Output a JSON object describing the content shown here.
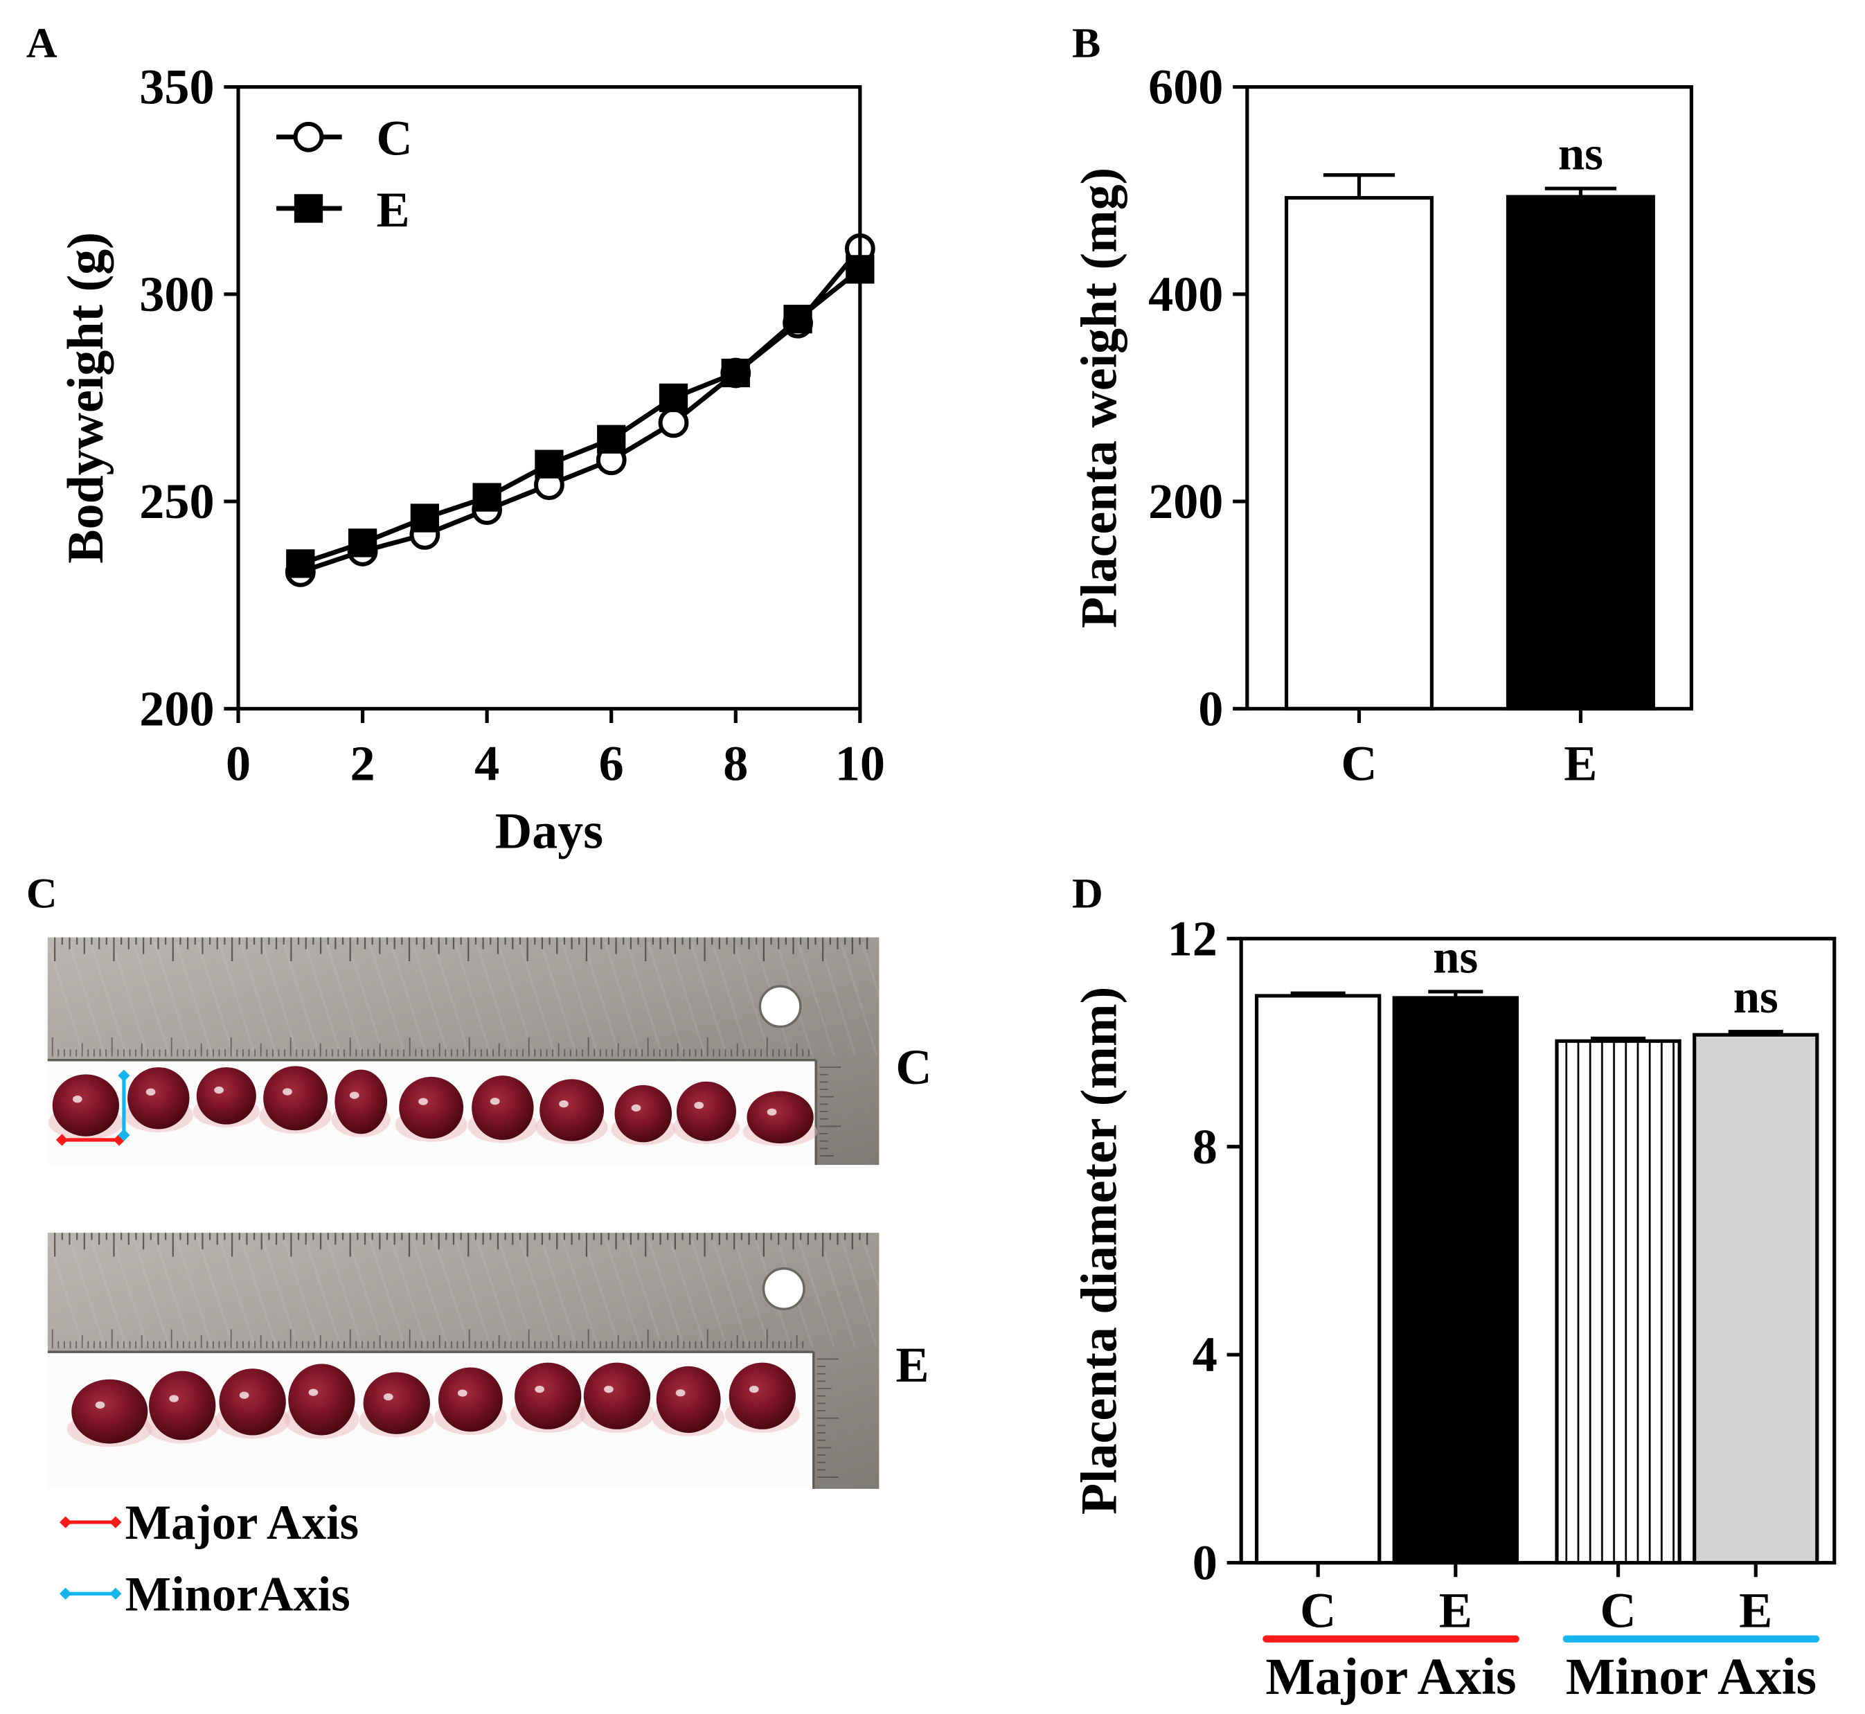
{
  "chart_data": [
    {
      "panel_label": "A",
      "type": "line",
      "xlabel": "Days",
      "ylabel": "Bodyweight (g)",
      "xlim": [
        0,
        10
      ],
      "ylim": [
        200,
        350
      ],
      "xticks": [
        0,
        2,
        4,
        6,
        8,
        10
      ],
      "yticks": [
        200,
        250,
        300,
        350
      ],
      "x": [
        1,
        2,
        3,
        4,
        5,
        6,
        7,
        8,
        9,
        10
      ],
      "series": [
        {
          "name": "C",
          "marker": "circle",
          "marker_filled": false,
          "values": [
            233,
            238,
            242,
            248,
            254,
            260,
            269,
            281,
            293,
            311
          ]
        },
        {
          "name": "E",
          "marker": "square",
          "marker_filled": true,
          "values": [
            235,
            240,
            246,
            251,
            259,
            265,
            275,
            281,
            294,
            306
          ]
        }
      ],
      "legend_position": "top-left",
      "grid": false
    },
    {
      "panel_label": "B",
      "type": "bar",
      "ylabel": "Placenta weight (mg)",
      "ylim": [
        0,
        600
      ],
      "yticks": [
        0,
        200,
        400,
        600
      ],
      "categories": [
        "C",
        "E"
      ],
      "values": [
        493,
        494
      ],
      "errors": [
        22,
        8
      ],
      "annotations": [
        "",
        "ns"
      ],
      "bar_colors": [
        "#ffffff",
        "#000000"
      ],
      "grid": false
    },
    {
      "panel_label": "D",
      "type": "bar",
      "ylabel": "Placenta diameter (mm)",
      "ylim": [
        0,
        12
      ],
      "yticks": [
        0,
        4,
        8,
        12
      ],
      "categories": [
        "C",
        "E",
        "C",
        "E"
      ],
      "values": [
        10.9,
        10.86,
        10.03,
        10.15
      ],
      "errors": [
        0.05,
        0.12,
        0.05,
        0.06
      ],
      "annotations": [
        "",
        "ns",
        "",
        "ns"
      ],
      "bar_colors": [
        "#ffffff",
        "#000000",
        "#ffffff",
        "#d3d3d3"
      ],
      "bar_striped": [
        false,
        false,
        true,
        false
      ],
      "groups": [
        {
          "label": "Major Axis",
          "color": "#ff1a1a",
          "members": [
            0,
            1
          ]
        },
        {
          "label": "Minor Axis",
          "color": "#14b4ee",
          "members": [
            2,
            3
          ]
        }
      ],
      "grid": false
    }
  ],
  "photo_panel": {
    "panel_label": "C",
    "rows": [
      {
        "label": "C",
        "placenta_count": 11
      },
      {
        "label": "E",
        "placenta_count": 10
      }
    ],
    "legend": [
      {
        "label": "Major Axis",
        "color": "#ff1a1a"
      },
      {
        "label": "MinorAxis",
        "color": "#14b4ee"
      }
    ]
  }
}
